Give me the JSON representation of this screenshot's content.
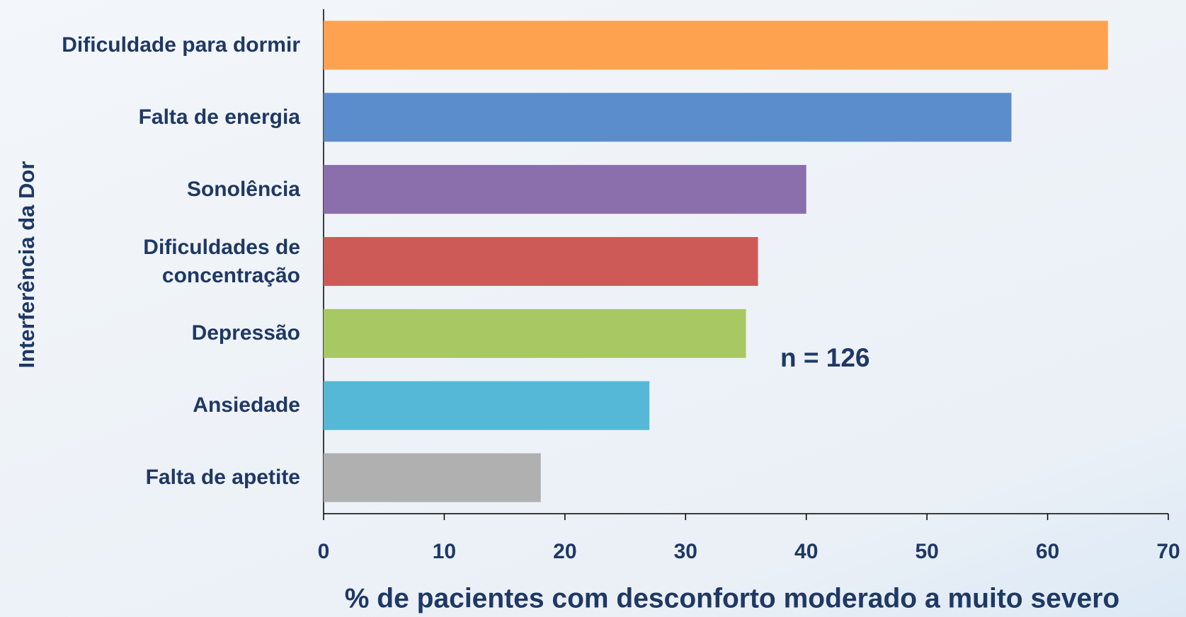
{
  "chart_data": {
    "type": "barh",
    "categories": [
      "Dificuldade para dormir",
      "Falta de energia",
      "Sonolência",
      "Dificuldades de\nconcentração",
      "Depressão",
      "Ansiedade",
      "Falta de apetite"
    ],
    "values": [
      65,
      57,
      40,
      36,
      35,
      27,
      18
    ],
    "colors": [
      "#ffa24f",
      "#5b8ccc",
      "#8b6fac",
      "#cd5a57",
      "#a8c864",
      "#55b8d6",
      "#b0b0b0"
    ],
    "xlim": [
      0,
      70
    ],
    "xticks": [
      0,
      10,
      20,
      30,
      40,
      50,
      60,
      70
    ],
    "xlabel": "% de pacientes com desconforto moderado a muito severo",
    "ylabel": "Interferência da Dor",
    "annotation": "n = 126"
  }
}
